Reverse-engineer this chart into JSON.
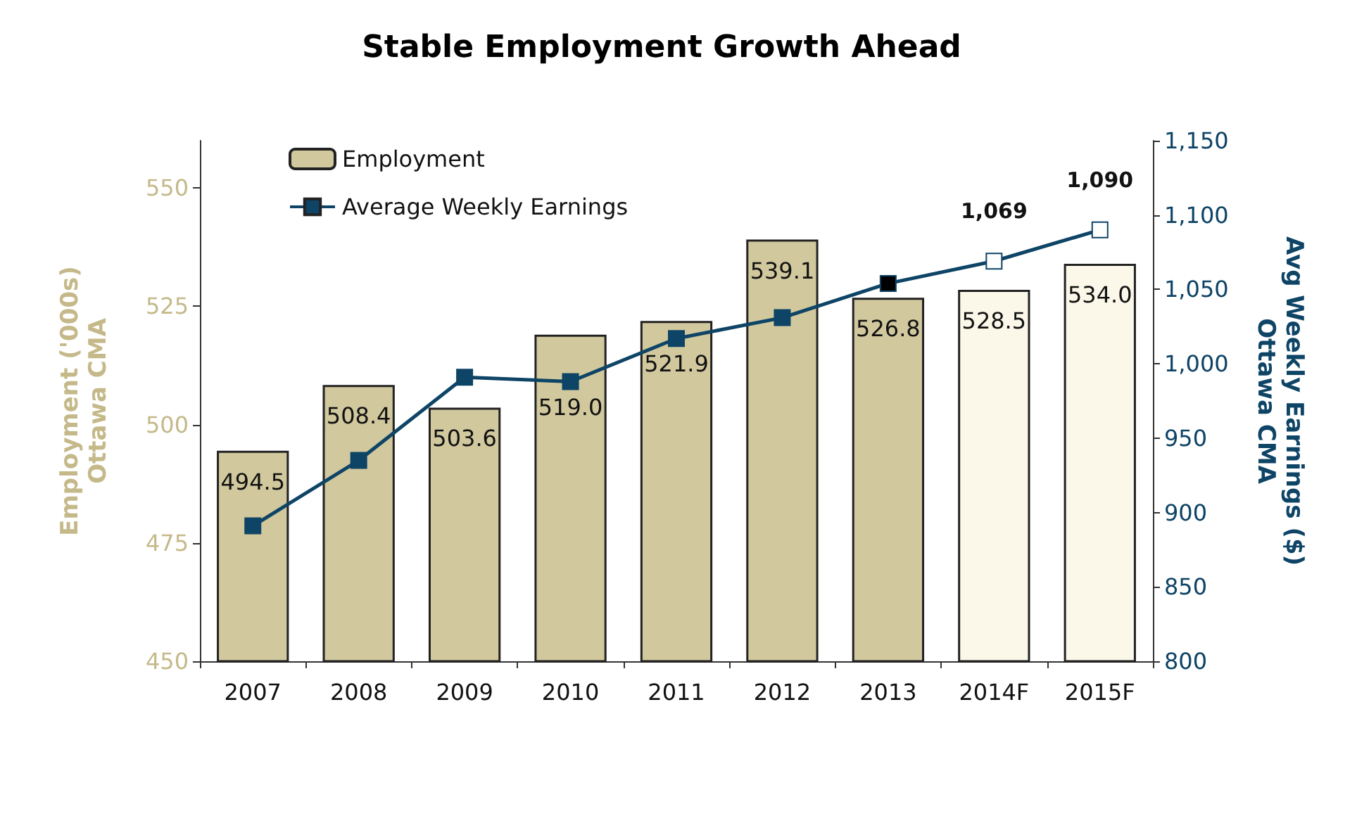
{
  "chart_data": {
    "type": "bar",
    "title": "Stable Employment Growth Ahead",
    "ylabel": "Employment ('000s)\nOttawa CMA",
    "y2label": "Avg Weekly Earnings ($)\nOttawa CMA",
    "categories": [
      "2007",
      "2008",
      "2009",
      "2010",
      "2011",
      "2012",
      "2013",
      "2014F",
      "2015F"
    ],
    "series": [
      {
        "name": "Employment",
        "color": "#d1c89e",
        "colors": [
          "#d1c89e",
          "#d1c89e",
          "#d1c89e",
          "#d1c89e",
          "#d1c89e",
          "#d1c89e",
          "#d1c89e",
          "#fbf8ea",
          "#fbf8ea"
        ],
        "values": [
          494.5,
          508.4,
          503.6,
          519.0,
          521.9,
          539.1,
          526.8,
          528.5,
          534.0
        ],
        "value_labels": [
          "494.5",
          "508.4",
          "503.6",
          "519.0",
          "521.9",
          "539.1",
          "526.8",
          "528.5",
          "534.0"
        ]
      },
      {
        "name": "Average Weekly Earnings",
        "type": "line",
        "axis": "y2",
        "color": "#0e4466",
        "colors": [
          "#0e4466",
          "#0e4466",
          "#0e4466",
          "#0e4466",
          "#0e4466",
          "#0e4466",
          "#000000",
          "#ffffff",
          "#ffffff"
        ],
        "values": [
          891,
          935,
          991,
          988,
          1017,
          1031,
          1054,
          1069,
          1090
        ],
        "value_labels": [
          null,
          null,
          null,
          null,
          null,
          null,
          null,
          "1,069",
          "1,090"
        ]
      }
    ],
    "ylim": [
      450,
      560
    ],
    "yticks": [
      450,
      475,
      500,
      525,
      550
    ],
    "y2lim": [
      800,
      1150
    ],
    "y2ticks": [
      800,
      850,
      900,
      950,
      {
        "value": 1000,
        "label": "1,000"
      },
      {
        "value": 1050,
        "label": "1,050"
      },
      {
        "value": 1100,
        "label": "1,100"
      },
      {
        "value": 1150,
        "label": "1,150"
      }
    ],
    "legend": "top left",
    "marker": "square",
    "line_style": "solid",
    "grid": false
  }
}
